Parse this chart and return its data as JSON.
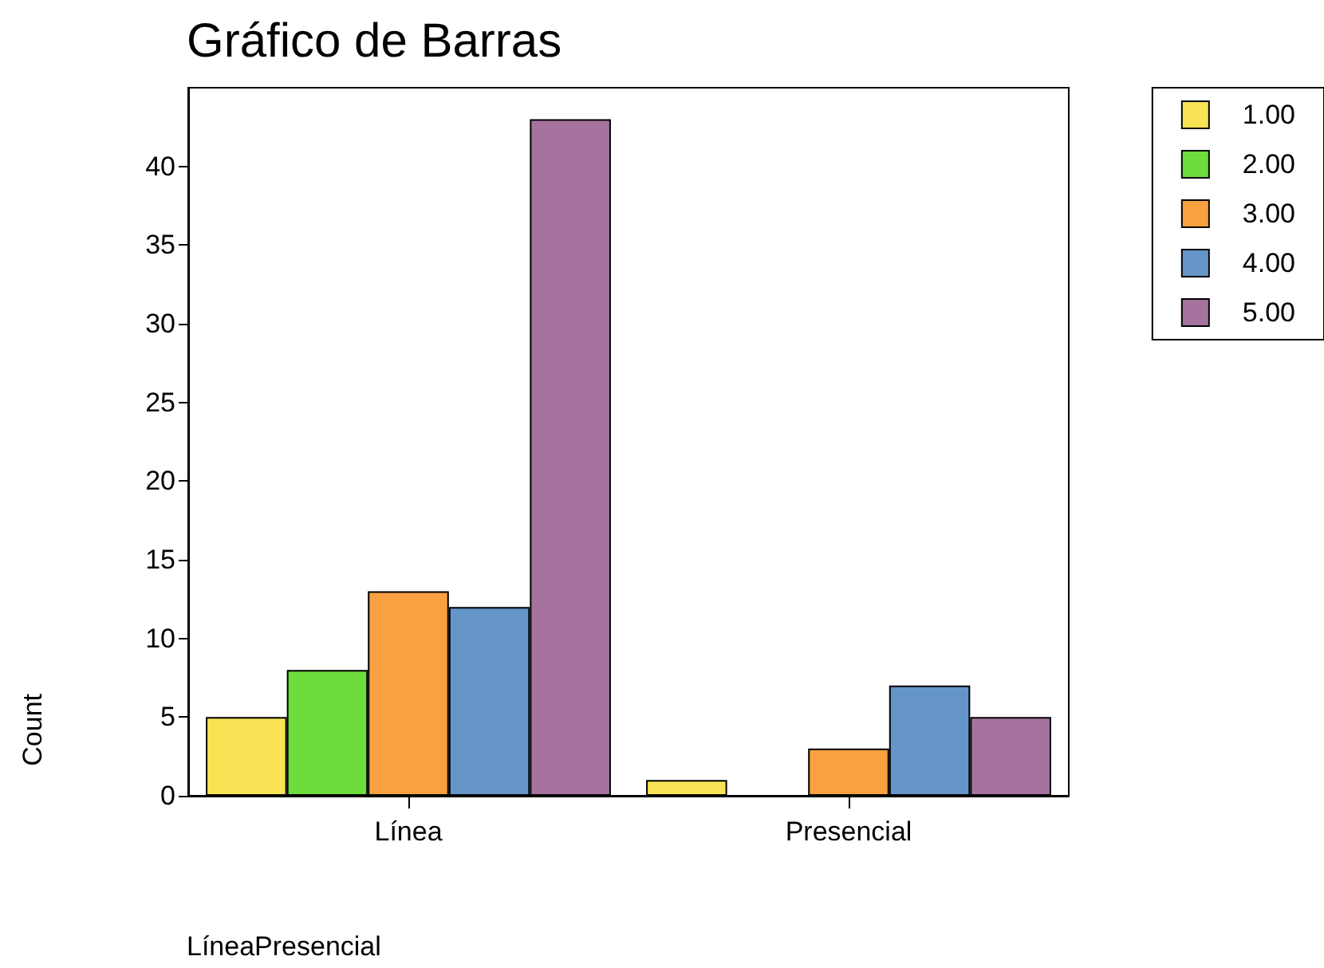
{
  "chart_data": {
    "type": "bar",
    "title": "Gráfico de Barras",
    "xlabel": "LíneaPresencial",
    "ylabel": "Count",
    "categories": [
      "Línea",
      "Presencial"
    ],
    "series": [
      {
        "name": "1.00",
        "color": "#f7e354",
        "values": [
          5,
          1
        ]
      },
      {
        "name": "2.00",
        "color": "#6ddc3c",
        "values": [
          8,
          null
        ]
      },
      {
        "name": "3.00",
        "color": "#f9a040",
        "values": [
          13,
          3
        ]
      },
      {
        "name": "4.00",
        "color": "#6595c8",
        "values": [
          12,
          7
        ]
      },
      {
        "name": "5.00",
        "color": "#a5739e",
        "values": [
          43,
          5
        ]
      }
    ],
    "ylim": [
      0,
      45
    ],
    "yticks": [
      0,
      5,
      10,
      15,
      20,
      25,
      30,
      35,
      40
    ],
    "grid": false,
    "legend": "top right"
  }
}
